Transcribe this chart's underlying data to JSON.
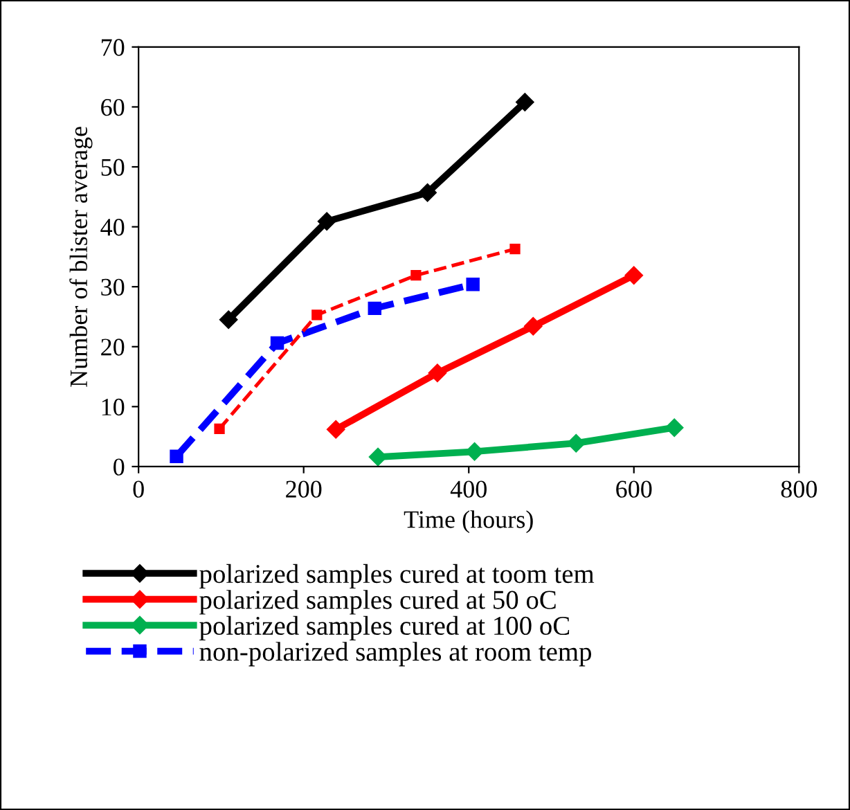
{
  "chart_data": {
    "type": "line",
    "xlabel": "Time (hours)",
    "ylabel": "Number of blister average",
    "xlim": [
      0,
      800
    ],
    "xticks": [
      0,
      200,
      400,
      600,
      800
    ],
    "ylim": [
      0,
      70
    ],
    "yticks": [
      0,
      10,
      20,
      30,
      40,
      50,
      60,
      70
    ],
    "grid": false,
    "legend": "bottom",
    "series": [
      {
        "name": "polarized samples cured at toom tem",
        "color": "#000000",
        "marker": "diamond",
        "line_style": "solid",
        "x": [
          109,
          228,
          350,
          468
        ],
        "values": [
          24.5,
          40.9,
          45.7,
          60.8
        ]
      },
      {
        "name": "polarized samples cured at 50 oC",
        "color": "#ff0000",
        "marker": "diamond",
        "line_style": "solid",
        "x": [
          239,
          362,
          478,
          600
        ],
        "values": [
          6.2,
          15.6,
          23.4,
          31.9
        ]
      },
      {
        "name": "polarized samples cured at 100 oC",
        "color": "#00b050",
        "marker": "diamond",
        "line_style": "solid",
        "x": [
          290,
          407,
          530,
          649
        ],
        "values": [
          1.6,
          2.5,
          3.9,
          6.5
        ]
      },
      {
        "name": "non-polarized samples at room temp",
        "color": "#0000ff",
        "marker": "square",
        "line_style": "dashed",
        "x": [
          46,
          168,
          286,
          405
        ],
        "values": [
          1.7,
          20.6,
          26.4,
          30.4
        ]
      },
      {
        "color": "#ff0000",
        "marker": "square",
        "line_style": "dashed",
        "x": [
          98,
          216,
          336,
          456
        ],
        "values": [
          6.3,
          25.3,
          31.9,
          36.3
        ]
      }
    ]
  }
}
